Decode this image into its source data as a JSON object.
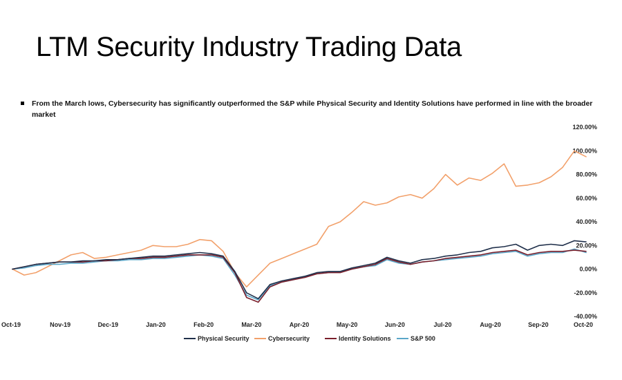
{
  "title": "LTM Security Industry Trading Data",
  "bullet": "From the March lows, Cybersecurity has significantly outperformed the S&P while Physical Security and Identity Solutions have performed in line with the broader market",
  "chart_data": {
    "type": "line",
    "x": [
      "Oct-19",
      "Oct-19 W2",
      "Oct-19 W3",
      "Oct-19 W4",
      "Nov-19",
      "Nov-19 W2",
      "Nov-19 W3",
      "Nov-19 W4",
      "Dec-19",
      "Dec-19 W2",
      "Dec-19 W3",
      "Dec-19 W4",
      "Jan-20",
      "Jan-20 W2",
      "Jan-20 W3",
      "Jan-20 W4",
      "Feb-20",
      "Feb-20 W2",
      "Feb-20 W3",
      "Feb-20 W4",
      "Mar-20",
      "Mar-20 W2",
      "Mar-20 W3",
      "Mar-20 W4",
      "Apr-20",
      "Apr-20 W2",
      "Apr-20 W3",
      "Apr-20 W4",
      "May-20",
      "May-20 W2",
      "May-20 W3",
      "May-20 W4",
      "Jun-20",
      "Jun-20 W2",
      "Jun-20 W3",
      "Jun-20 W4",
      "Jul-20",
      "Jul-20 W2",
      "Jul-20 W3",
      "Jul-20 W4",
      "Aug-20",
      "Aug-20 W2",
      "Aug-20 W3",
      "Aug-20 W4",
      "Sep-20",
      "Sep-20 W2",
      "Sep-20 W3",
      "Sep-20 W4",
      "Oct-20",
      "Oct-20 W2"
    ],
    "x_tick_labels": [
      "Oct-19",
      "Nov-19",
      "Dec-19",
      "Jan-20",
      "Feb-20",
      "Mar-20",
      "Apr-20",
      "May-20",
      "Jun-20",
      "Jul-20",
      "Aug-20",
      "Sep-20",
      "Oct-20"
    ],
    "y_tick_labels": [
      "120.00%",
      "100.00%",
      "80.00%",
      "60.00%",
      "40.00%",
      "20.00%",
      "0.00%",
      "-20.00%",
      "-40.00%"
    ],
    "ylim": [
      -40,
      120
    ],
    "y_unit": "%",
    "grid": false,
    "legend_position": "bottom",
    "series": [
      {
        "name": "Physical Security",
        "color": "#1f2f4a",
        "values": [
          0,
          2,
          4,
          5,
          6,
          6,
          7,
          7,
          8,
          8,
          9,
          10,
          11,
          11,
          12,
          13,
          14,
          13,
          11,
          -2,
          -20,
          -25,
          -13,
          -10,
          -8,
          -6,
          -3,
          -2,
          -2,
          1,
          3,
          5,
          10,
          7,
          5,
          8,
          9,
          11,
          12,
          14,
          15,
          18,
          19,
          21,
          16,
          20,
          21,
          20,
          24,
          23
        ]
      },
      {
        "name": "Cybersecurity",
        "color": "#f2a06a",
        "values": [
          0,
          -5,
          -3,
          2,
          7,
          12,
          14,
          9,
          10,
          12,
          14,
          16,
          20,
          19,
          19,
          21,
          25,
          24,
          15,
          -3,
          -15,
          -5,
          5,
          9,
          13,
          17,
          21,
          36,
          40,
          48,
          57,
          54,
          56,
          61,
          63,
          60,
          68,
          80,
          71,
          77,
          75,
          81,
          89,
          70,
          71,
          73,
          78,
          86,
          100,
          95
        ]
      },
      {
        "name": "Identity Solutions",
        "color": "#7a1e2a",
        "values": [
          0,
          2,
          4,
          5,
          6,
          6,
          6,
          7,
          7,
          8,
          9,
          9,
          10,
          10,
          11,
          12,
          12,
          12,
          10,
          -3,
          -24,
          -28,
          -15,
          -11,
          -9,
          -7,
          -4,
          -3,
          -3,
          0,
          2,
          4,
          9,
          6,
          4,
          6,
          7,
          9,
          10,
          11,
          12,
          14,
          15,
          16,
          12,
          14,
          15,
          15,
          16,
          15
        ]
      },
      {
        "name": "S&P 500",
        "color": "#5aa6c8",
        "values": [
          0,
          1,
          3,
          4,
          4,
          5,
          5,
          6,
          7,
          7,
          8,
          8,
          9,
          9,
          10,
          11,
          12,
          11,
          9,
          -5,
          -22,
          -26,
          -14,
          -11,
          -9,
          -6,
          -4,
          -3,
          -2,
          0,
          2,
          3,
          8,
          5,
          4,
          6,
          7,
          8,
          9,
          10,
          11,
          13,
          14,
          15,
          11,
          13,
          14,
          14,
          17,
          14
        ]
      }
    ]
  }
}
